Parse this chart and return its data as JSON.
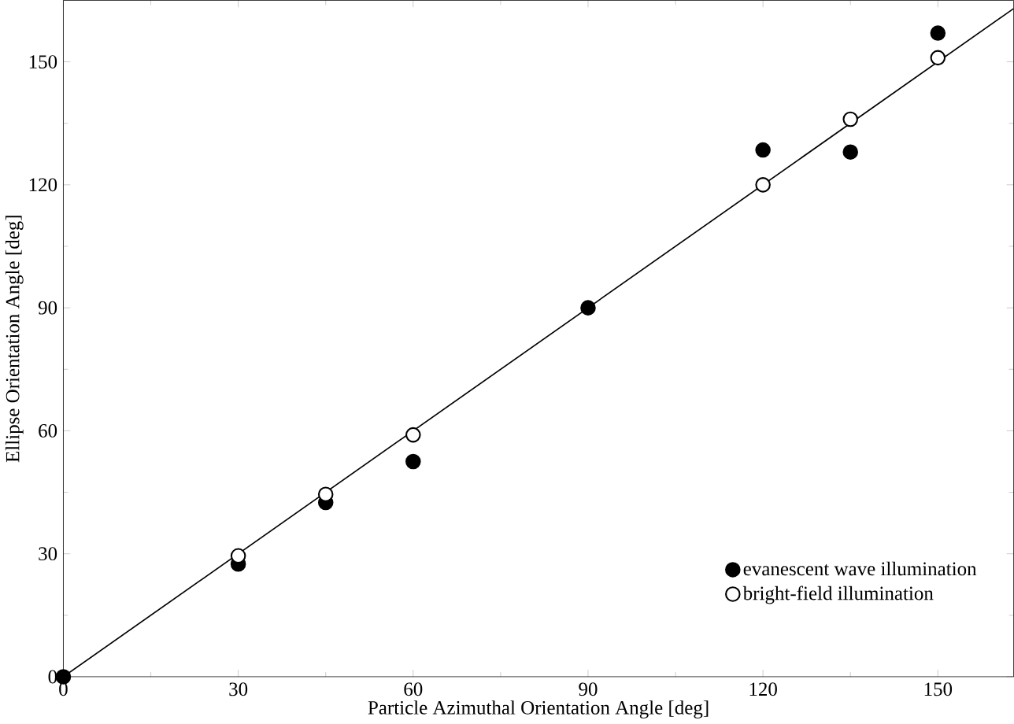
{
  "chart_data": {
    "type": "scatter",
    "xlabel": "Particle Azimuthal Orientation Angle [deg]",
    "ylabel": "Ellipse Orientation Angle [deg]",
    "xlim": [
      0,
      163
    ],
    "ylim": [
      0,
      165
    ],
    "xticks": [
      0,
      30,
      60,
      90,
      120,
      150
    ],
    "yticks": [
      0,
      30,
      60,
      90,
      120,
      150
    ],
    "legend": "bottom right",
    "marker": "circle",
    "series": [
      {
        "name": "evanescent wave illumination",
        "color": "#000000",
        "x": [
          0,
          30,
          45,
          60,
          90,
          120,
          135,
          150
        ],
        "values": [
          0,
          27.5,
          42.5,
          52.5,
          90,
          128.5,
          128,
          157
        ]
      },
      {
        "name": "bright-field illumination",
        "color": "#ffffff",
        "x": [
          30,
          45,
          60,
          120,
          135,
          150
        ],
        "values": [
          29.5,
          44.5,
          59,
          120,
          136,
          151
        ]
      },
      {
        "type": "line",
        "marker": "none",
        "color": "#000000",
        "x": [
          0,
          163
        ],
        "values": [
          0,
          163
        ]
      }
    ]
  }
}
